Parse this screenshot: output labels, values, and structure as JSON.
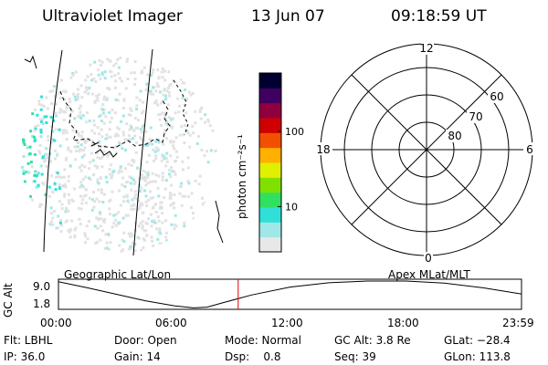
{
  "header": {
    "title": "Ultraviolet Imager",
    "date": "13 Jun 07",
    "time": "09:18:59 UT"
  },
  "colorbar": {
    "label": "photon cm⁻²s⁻¹",
    "ticks": [
      {
        "value": 100,
        "label": "100"
      },
      {
        "value": 10,
        "label": "10"
      }
    ],
    "range": [
      2.5,
      600
    ],
    "scale": "log",
    "colors": [
      "#e8e8e8",
      "#a0e8e8",
      "#30e0d8",
      "#30e060",
      "#80e000",
      "#e0f000",
      "#ffb000",
      "#f05000",
      "#d00000",
      "#900040",
      "#400060",
      "#000030"
    ]
  },
  "polar_grid": {
    "mlt_labels": [
      {
        "angle": 0,
        "label": "12"
      },
      {
        "angle": 90,
        "label": "6"
      },
      {
        "angle": 180,
        "label": "0"
      },
      {
        "angle": 270,
        "label": "18"
      }
    ],
    "mlat_labels": [
      "60",
      "70",
      "80"
    ]
  },
  "timeline": {
    "left_label": "Geographic Lat/Lon",
    "right_label": "Apex MLat/MLT",
    "y_axis_label": "GC Alt",
    "y_ticks": [
      "9.0",
      "1.8"
    ],
    "x_ticks": [
      "00:00",
      "06:00",
      "12:00",
      "18:00",
      "23:59"
    ],
    "current_time_hours": 9.316,
    "altitude_curve": [
      {
        "t": 0,
        "alt": 8.9
      },
      {
        "t": 1.5,
        "alt": 7.2
      },
      {
        "t": 3,
        "alt": 5.4
      },
      {
        "t": 4.5,
        "alt": 3.6
      },
      {
        "t": 6,
        "alt": 2.2
      },
      {
        "t": 7,
        "alt": 1.6
      },
      {
        "t": 7.7,
        "alt": 1.8
      },
      {
        "t": 8.5,
        "alt": 3.0
      },
      {
        "t": 10,
        "alt": 5.2
      },
      {
        "t": 12,
        "alt": 7.4
      },
      {
        "t": 14,
        "alt": 8.6
      },
      {
        "t": 16,
        "alt": 9.1
      },
      {
        "t": 18,
        "alt": 9.1
      },
      {
        "t": 20,
        "alt": 8.5
      },
      {
        "t": 22,
        "alt": 7.2
      },
      {
        "t": 23.98,
        "alt": 5.5
      }
    ],
    "alt_range": [
      1.2,
      9.6
    ],
    "line_color": "#000000",
    "marker_color": "#e00000"
  },
  "info": {
    "row1": {
      "flt": "Flt: LBHL",
      "door": "Door: Open",
      "mode": "Mode: Normal",
      "gcalt": "GC Alt: 3.8 Re",
      "glat": "GLat: −28.4"
    },
    "row2": {
      "ip": "IP: 36.0",
      "gain": "Gain: 14",
      "dsp": "Dsp:    0.8",
      "seq": "Seq: 39",
      "glon": "GLon: 113.8"
    }
  }
}
